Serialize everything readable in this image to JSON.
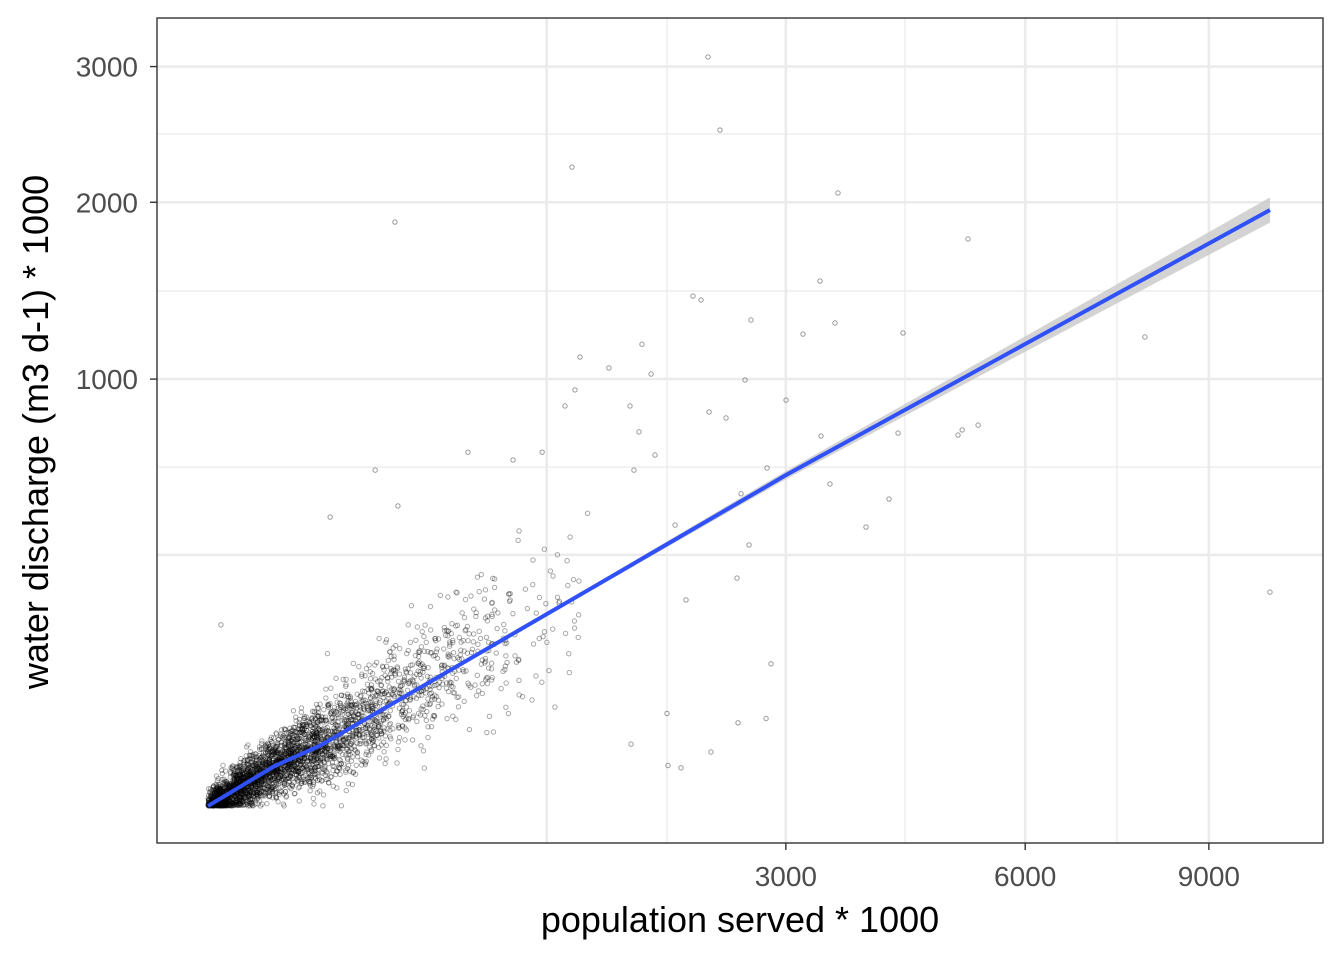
{
  "chart_data": {
    "type": "scatter",
    "xlabel": "population served * 1000",
    "ylabel": "water discharge (m3 d-1) * 1000",
    "x_scale": "sqrt",
    "y_scale": "sqrt",
    "xlim": [
      0,
      10500
    ],
    "ylim": [
      0,
      3300
    ],
    "x_ticks": [
      {
        "value": 3000,
        "label": "3000"
      },
      {
        "value": 6000,
        "label": "6000"
      },
      {
        "value": 9000,
        "label": "9000"
      }
    ],
    "y_ticks": [
      {
        "value": 1000,
        "label": "1000"
      },
      {
        "value": 2000,
        "label": "2000"
      },
      {
        "value": 3000,
        "label": "3000"
      }
    ],
    "x_grid_major_unlabeled": [
      1031
    ],
    "x_grid_minor": [
      1893,
      4365,
      7424
    ],
    "y_grid_major_unlabeled": [
      346
    ],
    "y_grid_minor": [
      630,
      1455,
      2478
    ],
    "grid": true,
    "point_color": "#000000",
    "fit_color": "#3050F8",
    "band_color": "#C8C8C8",
    "fit_line": {
      "x": [
        0,
        40,
        113,
        1031,
        3002,
        6000,
        10133
      ],
      "y": [
        0,
        8.8,
        20,
        202,
        601,
        1171,
        1949
      ]
    },
    "points": [
      [
        2246,
        3078
      ],
      [
        2355,
        2507
      ],
      [
        1190,
        2240
      ],
      [
        314,
        1871
      ],
      [
        3566,
        2062
      ],
      [
        5190,
        1764
      ],
      [
        7887,
        1207
      ],
      [
        10133,
        251
      ],
      [
        3365,
        1512
      ],
      [
        3181,
        1222
      ],
      [
        3532,
        1280
      ],
      [
        4340,
        1228
      ],
      [
        2649,
        1296
      ],
      [
        2113,
        1427
      ],
      [
        2184,
        1405
      ],
      [
        3002,
        904
      ],
      [
        2591,
        996
      ],
      [
        5328,
        796
      ],
      [
        5110,
        776
      ],
      [
        5054,
        755
      ],
      [
        4278,
        763
      ],
      [
        3376,
        751
      ],
      [
        3476,
        569
      ],
      [
        4167,
        517
      ],
      [
        3890,
        427
      ],
      [
        2848,
        111
      ],
      [
        2798,
        42
      ],
      [
        2524,
        38
      ],
      [
        2273,
        16
      ],
      [
        1901,
        9
      ],
      [
        2010,
        8
      ],
      [
        1692,
        1170
      ],
      [
        1764,
        1024
      ],
      [
        1444,
        1053
      ],
      [
        1243,
        1106
      ],
      [
        1210,
        950
      ],
      [
        1145,
        878
      ],
      [
        1600,
        878
      ],
      [
        1669,
        768
      ],
      [
        2256,
        852
      ],
      [
        2411,
        826
      ],
      [
        2808,
        627
      ],
      [
        2553,
        535
      ],
      [
        2630,
        374
      ],
      [
        2514,
        285
      ],
      [
        2053,
        233
      ],
      [
        1893,
        47
      ],
      [
        1608,
        21
      ],
      [
        251,
        619
      ],
      [
        134,
        458
      ],
      [
        324,
        494
      ],
      [
        1.5,
        180
      ],
      [
        607,
        687
      ],
      [
        836,
        657
      ],
      [
        1003,
        687
      ],
      [
        1630,
        619
      ],
      [
        1795,
        676
      ],
      [
        1960,
        433
      ]
    ]
  }
}
